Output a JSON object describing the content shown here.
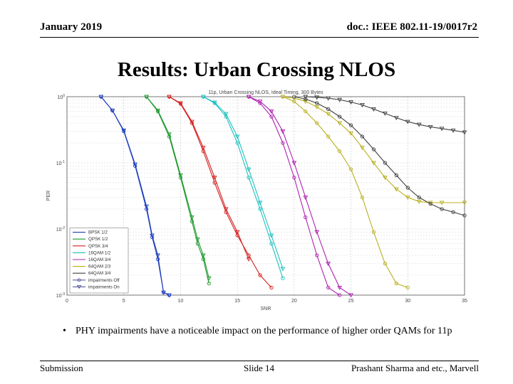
{
  "header": {
    "date": "January 2019",
    "doc": "doc.: IEEE 802.11-19/0017r2"
  },
  "slide_title": "Results: Urban Crossing NLOS",
  "bullet": "PHY impairments have a noticeable impact on the performance of higher order QAMs for 11p",
  "footer": {
    "left": "Submission",
    "center": "Slide 14",
    "right": "Prashant Sharma and etc., Marvell"
  },
  "chart_data": {
    "type": "line",
    "title": "11p, Urban Crossing NLOS, Ideal Timing, 300 Bytes",
    "xlabel": "SNR",
    "ylabel": "PER",
    "xlim": [
      0,
      35
    ],
    "ylim": [
      0.001,
      1
    ],
    "yscale": "log",
    "xticks": [
      "0",
      "5",
      "10",
      "15",
      "20",
      "25",
      "30",
      "35"
    ],
    "yticks": [
      "10^0",
      "10^-1",
      "10^-2",
      "10^-3"
    ],
    "grid": true,
    "legend_position": "bottom-left",
    "legend": [
      {
        "label": "BPSK 1/2",
        "color": "#1f3fbf",
        "style": "solid"
      },
      {
        "label": "QPSK 1/2",
        "color": "#1f9a2f",
        "style": "solid"
      },
      {
        "label": "QPSK 3/4",
        "color": "#d62020",
        "style": "solid"
      },
      {
        "label": "16QAM 1/2",
        "color": "#1fbfbf",
        "style": "solid"
      },
      {
        "label": "16QAM 3/4",
        "color": "#b020b0",
        "style": "solid"
      },
      {
        "label": "64QAM 2/3",
        "color": "#b8b020",
        "style": "solid"
      },
      {
        "label": "64QAM 3/4",
        "color": "#404040",
        "style": "solid"
      },
      {
        "label": "impairments Off",
        "color": "#5a5aa0",
        "style": "solid",
        "marker": "circle"
      },
      {
        "label": "impairments On",
        "color": "#5a5aa0",
        "style": "solid",
        "marker": "triangle"
      }
    ],
    "series": [
      {
        "color": "#1f3fbf",
        "marker": "circle",
        "x": [
          3,
          4,
          5,
          6,
          7,
          7.5,
          8,
          8.5,
          9
        ],
        "y": [
          1,
          0.62,
          0.3,
          0.09,
          0.02,
          0.0075,
          0.0035,
          0.0011,
          0.001
        ]
      },
      {
        "color": "#1f3fbf",
        "marker": "triangle",
        "x": [
          3,
          4,
          5,
          6,
          7,
          7.5,
          8,
          8.5,
          9
        ],
        "y": [
          1,
          0.62,
          0.31,
          0.095,
          0.022,
          0.008,
          0.004,
          0.0011,
          0.001
        ]
      },
      {
        "color": "#1f9a2f",
        "marker": "circle",
        "x": [
          7,
          8,
          9,
          10,
          11,
          11.5,
          12,
          12.5
        ],
        "y": [
          1,
          0.6,
          0.25,
          0.06,
          0.013,
          0.006,
          0.0035,
          0.0015
        ]
      },
      {
        "color": "#1f9a2f",
        "marker": "triangle",
        "x": [
          7,
          8,
          9,
          10,
          11,
          11.5,
          12,
          12.5
        ],
        "y": [
          1,
          0.62,
          0.27,
          0.065,
          0.015,
          0.007,
          0.004,
          0.0018
        ]
      },
      {
        "color": "#d62020",
        "marker": "circle",
        "x": [
          9,
          10,
          11,
          12,
          13,
          14,
          15,
          16,
          17,
          18
        ],
        "y": [
          1,
          0.78,
          0.4,
          0.15,
          0.05,
          0.018,
          0.008,
          0.004,
          0.002,
          0.0013
        ]
      },
      {
        "color": "#d62020",
        "marker": "triangle",
        "x": [
          9,
          10,
          11,
          12,
          13,
          14,
          15,
          16
        ],
        "y": [
          1,
          0.8,
          0.42,
          0.17,
          0.06,
          0.02,
          0.009,
          0.0035
        ]
      },
      {
        "color": "#1fbfbf",
        "marker": "circle",
        "x": [
          12,
          13,
          14,
          15,
          16,
          17,
          18,
          19
        ],
        "y": [
          1,
          0.8,
          0.5,
          0.2,
          0.06,
          0.02,
          0.006,
          0.0018
        ]
      },
      {
        "color": "#1fbfbf",
        "marker": "triangle",
        "x": [
          12,
          13,
          14,
          15,
          16,
          17,
          18,
          19
        ],
        "y": [
          1,
          0.82,
          0.55,
          0.25,
          0.08,
          0.025,
          0.008,
          0.0025
        ]
      },
      {
        "color": "#b020b0",
        "marker": "circle",
        "x": [
          16,
          17,
          18,
          19,
          20,
          21,
          22,
          23,
          24
        ],
        "y": [
          1,
          0.8,
          0.5,
          0.2,
          0.06,
          0.015,
          0.004,
          0.0013,
          0.001
        ]
      },
      {
        "color": "#b020b0",
        "marker": "triangle",
        "x": [
          16,
          17,
          18,
          19,
          20,
          21,
          22,
          23,
          24,
          25
        ],
        "y": [
          1,
          0.85,
          0.6,
          0.3,
          0.1,
          0.03,
          0.009,
          0.003,
          0.0013,
          0.001
        ]
      },
      {
        "color": "#b8b020",
        "marker": "circle",
        "x": [
          19,
          20,
          21,
          22,
          23,
          24,
          25,
          26,
          27,
          28,
          29,
          30
        ],
        "y": [
          1,
          0.85,
          0.6,
          0.4,
          0.25,
          0.15,
          0.08,
          0.03,
          0.009,
          0.003,
          0.0015,
          0.0013
        ]
      },
      {
        "color": "#b8b020",
        "marker": "triangle",
        "x": [
          19,
          20,
          21,
          22,
          23,
          24,
          25,
          26,
          27,
          28,
          29,
          30,
          31,
          32,
          33,
          35
        ],
        "y": [
          1,
          0.95,
          0.85,
          0.7,
          0.55,
          0.4,
          0.28,
          0.17,
          0.1,
          0.06,
          0.04,
          0.03,
          0.026,
          0.025,
          0.025,
          0.025
        ]
      },
      {
        "color": "#404040",
        "marker": "circle",
        "x": [
          20,
          21,
          22,
          23,
          24,
          25,
          26,
          27,
          28,
          29,
          30,
          31,
          32,
          33,
          34,
          35
        ],
        "y": [
          1,
          0.92,
          0.8,
          0.65,
          0.5,
          0.37,
          0.25,
          0.16,
          0.1,
          0.065,
          0.042,
          0.03,
          0.024,
          0.02,
          0.018,
          0.016
        ]
      },
      {
        "color": "#404040",
        "marker": "triangle",
        "x": [
          21,
          22,
          23,
          24,
          25,
          26,
          27,
          28,
          29,
          30,
          31,
          32,
          33,
          34,
          35
        ],
        "y": [
          1,
          0.98,
          0.95,
          0.9,
          0.83,
          0.75,
          0.65,
          0.56,
          0.48,
          0.42,
          0.38,
          0.35,
          0.33,
          0.31,
          0.29
        ]
      }
    ]
  }
}
